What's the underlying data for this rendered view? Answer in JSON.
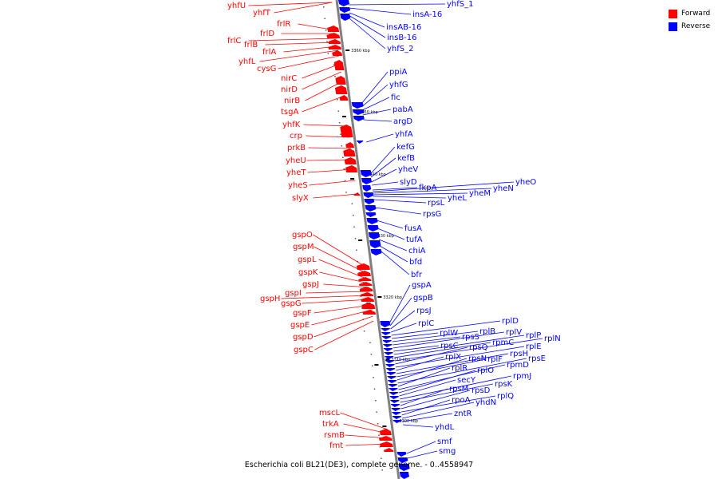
{
  "caption": "Escherichia coli BL21(DE3), complete genome. - 0..4558947",
  "legend": [
    {
      "label": "Forward",
      "color": "#ff0000"
    },
    {
      "label": "Reverse",
      "color": "#0000ff"
    }
  ],
  "colors": {
    "forward": "#ff0000",
    "reverse": "#0000ff",
    "backbone": "#808080"
  },
  "ticks": [
    "3360 kbp",
    "3350 kbp",
    "3340 kbp",
    "3330 kbp",
    "3320 kbp",
    "3310 kbp",
    "3300 kbp"
  ],
  "forward_genes": [
    "yhfU",
    "yhfT",
    "frlR",
    "frlD",
    "frlC",
    "frlB",
    "frlA",
    "yhfL",
    "cysG",
    "nirC",
    "nirD",
    "nirB",
    "tsgA",
    "yhfK",
    "crp",
    "prkB",
    "yheU",
    "yheT",
    "yheS",
    "slyX",
    "gspO",
    "gspM",
    "gspL",
    "gspK",
    "gspJ",
    "gspI",
    "gspH",
    "gspG",
    "gspF",
    "gspE",
    "gspD",
    "gspC",
    "mscL",
    "trkA",
    "rsmB",
    "fmt"
  ],
  "reverse_genes": [
    "yhfS_1",
    "insA-16",
    "insAB-16",
    "insB-16",
    "yhfS_2",
    "ppiA",
    "yhfG",
    "fic",
    "pabA",
    "argD",
    "yhfA",
    "kefG",
    "kefB",
    "yheV",
    "slyD",
    "fkpA",
    "yheO",
    "yheN",
    "yheM",
    "yheL",
    "rpsL",
    "rpsG",
    "fusA",
    "tufA",
    "chiA",
    "bfd",
    "bfr",
    "gspA",
    "gspB",
    "rpsJ",
    "rplC",
    "rplD",
    "rplW",
    "rplB",
    "rpsS",
    "rplV",
    "rpsC",
    "rplP",
    "rpmC",
    "rplN",
    "rpsQ",
    "rplE",
    "rplX",
    "rpsH",
    "rplF",
    "rpsN",
    "rpsE",
    "rplR",
    "rpmD",
    "rplO",
    "secY",
    "rpmJ",
    "rpsK",
    "rpsM",
    "rpsD",
    "rplQ",
    "rpoA",
    "yhdN",
    "zntR",
    "yhdL",
    "smf",
    "smg"
  ]
}
